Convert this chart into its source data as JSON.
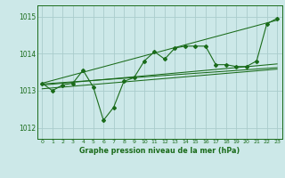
{
  "background_color": "#cce8e8",
  "grid_color": "#aacccc",
  "line_color": "#1a6b1a",
  "title": "Graphe pression niveau de la mer (hPa)",
  "xlim": [
    -0.5,
    23.5
  ],
  "ylim": [
    1011.7,
    1015.3
  ],
  "yticks": [
    1012,
    1013,
    1014,
    1015
  ],
  "xticks": [
    0,
    1,
    2,
    3,
    4,
    5,
    6,
    7,
    8,
    9,
    10,
    11,
    12,
    13,
    14,
    15,
    16,
    17,
    18,
    19,
    20,
    21,
    22,
    23
  ],
  "main_line": [
    [
      0,
      1013.2
    ],
    [
      1,
      1013.0
    ],
    [
      2,
      1013.15
    ],
    [
      3,
      1013.2
    ],
    [
      4,
      1013.55
    ],
    [
      5,
      1013.1
    ],
    [
      6,
      1012.2
    ],
    [
      7,
      1012.55
    ],
    [
      8,
      1013.25
    ],
    [
      9,
      1013.35
    ],
    [
      10,
      1013.8
    ],
    [
      11,
      1014.05
    ],
    [
      12,
      1013.85
    ],
    [
      13,
      1014.15
    ],
    [
      14,
      1014.2
    ],
    [
      15,
      1014.2
    ],
    [
      16,
      1014.2
    ],
    [
      17,
      1013.7
    ],
    [
      18,
      1013.7
    ],
    [
      19,
      1013.65
    ],
    [
      20,
      1013.65
    ],
    [
      21,
      1013.8
    ],
    [
      22,
      1014.8
    ],
    [
      23,
      1014.95
    ]
  ],
  "trend_line1": [
    [
      0,
      1013.18
    ],
    [
      23,
      1013.62
    ]
  ],
  "trend_line2": [
    [
      0,
      1013.15
    ],
    [
      23,
      1013.72
    ]
  ],
  "trend_line3": [
    [
      0,
      1013.2
    ],
    [
      23,
      1014.9
    ]
  ],
  "trend_line4": [
    [
      0,
      1013.05
    ],
    [
      23,
      1013.58
    ]
  ]
}
